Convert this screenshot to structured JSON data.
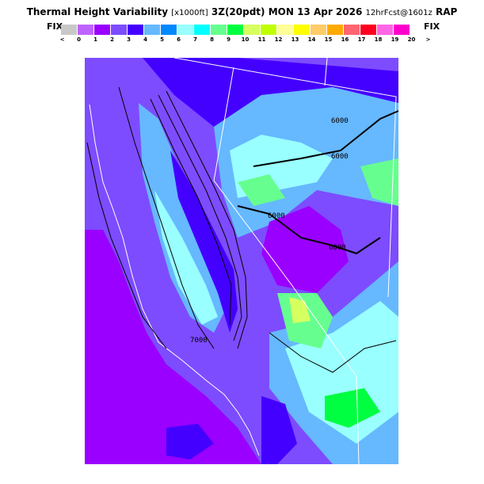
{
  "header": {
    "title_main": "Thermal Height Variability",
    "title_units": "[x1000ft]",
    "title_time": "3Z(20pdt) MON 13 Apr 2026",
    "title_forecast": "12hrFcst@1601z",
    "title_model": "RAP",
    "fix_left": "FIX",
    "fix_right": "FIX"
  },
  "legend": {
    "colors": [
      "#c8c8c8",
      "#bf63ff",
      "#9a00ff",
      "#7d4cff",
      "#4400ff",
      "#66b8ff",
      "#0088ff",
      "#99ffff",
      "#00ffff",
      "#66ff8f",
      "#00ff40",
      "#d6ff60",
      "#c0ff00",
      "#ffff99",
      "#ffff00",
      "#ffcc66",
      "#ffaa00",
      "#ff6670",
      "#ff0020",
      "#ff66e6",
      "#ff00cc"
    ],
    "labels": [
      "<",
      "0",
      "1",
      "2",
      "3",
      "4",
      "5",
      "6",
      "7",
      "8",
      "9",
      "10",
      "11",
      "12",
      "13",
      "14",
      "15",
      "16",
      "17",
      "18",
      "19",
      "20",
      ">"
    ]
  },
  "map": {
    "contour_labels": [
      "6000",
      "6000",
      "6000",
      "6000",
      "7000"
    ],
    "colors": {
      "background": "#7d4cff",
      "ocean": "#9a00ff",
      "border": "#ffffff",
      "contour": "#000000"
    }
  }
}
